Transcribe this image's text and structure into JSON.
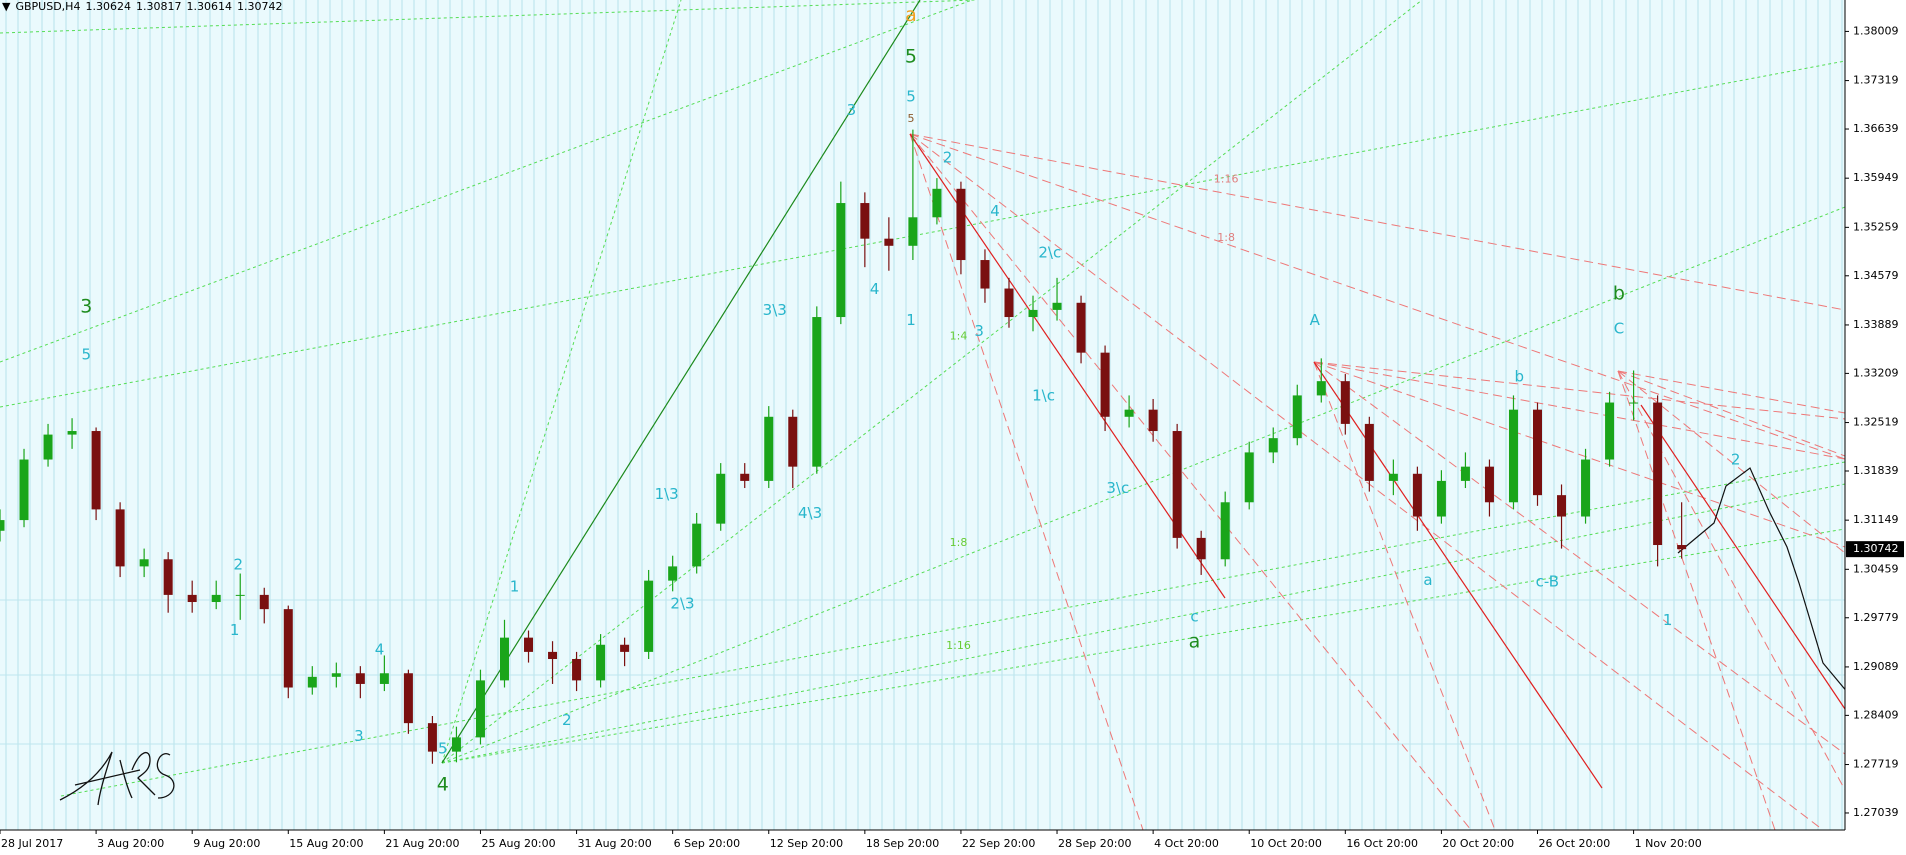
{
  "chart_data": {
    "type": "candlestick",
    "header": {
      "symbol": "GBPUSD,H4",
      "ohlc": [
        1.30624,
        1.30817,
        1.30614,
        1.30742
      ]
    },
    "ylim": [
      1.268,
      1.3845
    ],
    "yticks": [
      1.38009,
      1.37319,
      1.36639,
      1.35949,
      1.35259,
      1.34579,
      1.33889,
      1.33209,
      1.32519,
      1.31839,
      1.31149,
      1.30459,
      1.29779,
      1.29089,
      1.28409,
      1.27719,
      1.27039
    ],
    "xlim": [
      0,
      76.8
    ],
    "xticks": [
      {
        "value": 0,
        "label": "28 Jul 2017"
      },
      {
        "value": 4,
        "label": "3 Aug 20:00"
      },
      {
        "value": 8,
        "label": "9 Aug 20:00"
      },
      {
        "value": 12,
        "label": "15 Aug 20:00"
      },
      {
        "value": 16,
        "label": "21 Aug 20:00"
      },
      {
        "value": 20,
        "label": "25 Aug 20:00"
      },
      {
        "value": 24,
        "label": "31 Aug 20:00"
      },
      {
        "value": 28,
        "label": "6 Sep 20:00"
      },
      {
        "value": 32,
        "label": "12 Sep 20:00"
      },
      {
        "value": 36,
        "label": "18 Sep 20:00"
      },
      {
        "value": 40,
        "label": "22 Sep 20:00"
      },
      {
        "value": 44,
        "label": "28 Sep 20:00"
      },
      {
        "value": 48,
        "label": "4 Oct 20:00"
      },
      {
        "value": 52,
        "label": "10 Oct 20:00"
      },
      {
        "value": 56,
        "label": "16 Oct 20:00"
      },
      {
        "value": 60,
        "label": "20 Oct 20:00"
      },
      {
        "value": 64,
        "label": "26 Oct 20:00"
      },
      {
        "value": 68,
        "label": "1 Nov 20:00"
      }
    ],
    "bull_color": "#1aa51a",
    "bear_color": "#7a1010",
    "ohlc": [
      [
        1.31,
        1.313,
        1.3085,
        1.3115
      ],
      [
        1.3115,
        1.3215,
        1.3105,
        1.32
      ],
      [
        1.32,
        1.325,
        1.319,
        1.3235
      ],
      [
        1.3235,
        1.3258,
        1.3215,
        1.324
      ],
      [
        1.324,
        1.3245,
        1.3115,
        1.313
      ],
      [
        1.313,
        1.314,
        1.3035,
        1.305
      ],
      [
        1.305,
        1.3075,
        1.3035,
        1.306
      ],
      [
        1.306,
        1.307,
        1.2985,
        1.301
      ],
      [
        1.301,
        1.303,
        1.2985,
        1.3
      ],
      [
        1.3,
        1.303,
        1.299,
        1.301
      ],
      [
        1.301,
        1.304,
        1.2975,
        1.301
      ],
      [
        1.301,
        1.302,
        1.297,
        1.299
      ],
      [
        1.299,
        1.2995,
        1.2865,
        1.288
      ],
      [
        1.288,
        1.291,
        1.287,
        1.2895
      ],
      [
        1.2895,
        1.2915,
        1.288,
        1.29
      ],
      [
        1.29,
        1.291,
        1.2865,
        1.2885
      ],
      [
        1.2885,
        1.2925,
        1.2875,
        1.29
      ],
      [
        1.29,
        1.2905,
        1.2815,
        1.283
      ],
      [
        1.283,
        1.284,
        1.2773,
        1.279
      ],
      [
        1.279,
        1.2825,
        1.2775,
        1.281
      ],
      [
        1.281,
        1.2905,
        1.28,
        1.289
      ],
      [
        1.289,
        1.2975,
        1.288,
        1.295
      ],
      [
        1.295,
        1.296,
        1.2915,
        1.293
      ],
      [
        1.293,
        1.2945,
        1.2885,
        1.292
      ],
      [
        1.292,
        1.293,
        1.2875,
        1.289
      ],
      [
        1.289,
        1.2955,
        1.288,
        1.294
      ],
      [
        1.294,
        1.295,
        1.291,
        1.293
      ],
      [
        1.293,
        1.3045,
        1.292,
        1.303
      ],
      [
        1.303,
        1.3065,
        1.3015,
        1.305
      ],
      [
        1.305,
        1.3125,
        1.304,
        1.311
      ],
      [
        1.311,
        1.3195,
        1.31,
        1.318
      ],
      [
        1.318,
        1.3195,
        1.316,
        1.317
      ],
      [
        1.317,
        1.3275,
        1.316,
        1.326
      ],
      [
        1.326,
        1.327,
        1.316,
        1.319
      ],
      [
        1.319,
        1.3415,
        1.318,
        1.34
      ],
      [
        1.34,
        1.359,
        1.339,
        1.356
      ],
      [
        1.356,
        1.3575,
        1.347,
        1.351
      ],
      [
        1.351,
        1.354,
        1.3465,
        1.35
      ],
      [
        1.35,
        1.3663,
        1.348,
        1.354
      ],
      [
        1.354,
        1.3595,
        1.353,
        1.358
      ],
      [
        1.358,
        1.359,
        1.346,
        1.348
      ],
      [
        1.348,
        1.3495,
        1.342,
        1.344
      ],
      [
        1.344,
        1.3455,
        1.3385,
        1.34
      ],
      [
        1.34,
        1.343,
        1.338,
        1.341
      ],
      [
        1.341,
        1.3455,
        1.3395,
        1.342
      ],
      [
        1.342,
        1.343,
        1.3335,
        1.335
      ],
      [
        1.335,
        1.336,
        1.324,
        1.326
      ],
      [
        1.326,
        1.329,
        1.3245,
        1.327
      ],
      [
        1.327,
        1.3285,
        1.3225,
        1.324
      ],
      [
        1.324,
        1.325,
        1.3075,
        1.309
      ],
      [
        1.309,
        1.31,
        1.3038,
        1.306
      ],
      [
        1.306,
        1.3155,
        1.305,
        1.314
      ],
      [
        1.314,
        1.3225,
        1.313,
        1.321
      ],
      [
        1.321,
        1.3245,
        1.3195,
        1.323
      ],
      [
        1.323,
        1.3305,
        1.322,
        1.329
      ],
      [
        1.329,
        1.3342,
        1.328,
        1.331
      ],
      [
        1.331,
        1.332,
        1.3235,
        1.325
      ],
      [
        1.325,
        1.326,
        1.3155,
        1.317
      ],
      [
        1.317,
        1.32,
        1.315,
        1.318
      ],
      [
        1.318,
        1.319,
        1.31,
        1.312
      ],
      [
        1.312,
        1.3185,
        1.311,
        1.317
      ],
      [
        1.317,
        1.321,
        1.316,
        1.319
      ],
      [
        1.319,
        1.32,
        1.312,
        1.314
      ],
      [
        1.314,
        1.329,
        1.313,
        1.327
      ],
      [
        1.327,
        1.328,
        1.3135,
        1.315
      ],
      [
        1.315,
        1.3165,
        1.3075,
        1.312
      ],
      [
        1.312,
        1.3215,
        1.311,
        1.32
      ],
      [
        1.32,
        1.3295,
        1.319,
        1.328
      ],
      [
        1.328,
        1.3325,
        1.3255,
        1.328
      ],
      [
        1.328,
        1.329,
        1.305,
        1.308
      ],
      [
        1.308,
        1.314,
        1.3061,
        1.30742
      ]
    ],
    "annotations": [
      {
        "text": "3",
        "x": 3.59,
        "y": 1.3414,
        "color": "#1e8c1e"
      },
      {
        "text": "5",
        "x": 3.59,
        "y": 1.3347,
        "color": "#29b6cc"
      },
      {
        "text": "4",
        "x": 18.43,
        "y": 1.2743,
        "color": "#1e8c1e"
      },
      {
        "text": "5",
        "x": 18.43,
        "y": 1.2794,
        "color": "#29b6cc"
      },
      {
        "text": "a",
        "x": 37.92,
        "y": 1.3823,
        "color": "#f0a020"
      },
      {
        "text": "5",
        "x": 37.92,
        "y": 1.3765,
        "color": "#1e8c1e"
      },
      {
        "text": "5",
        "x": 37.92,
        "y": 1.3709,
        "color": "#29b6cc"
      },
      {
        "text": "5",
        "x": 37.92,
        "y": 1.3678,
        "color": "#8b5a2b"
      },
      {
        "text": "1",
        "x": 37.92,
        "y": 1.3395,
        "color": "#29b6cc"
      },
      {
        "text": "a",
        "x": 49.72,
        "y": 1.2944,
        "color": "#1e8c1e"
      },
      {
        "text": "c",
        "x": 49.72,
        "y": 1.2979,
        "color": "#29b6cc"
      },
      {
        "text": "A",
        "x": 54.73,
        "y": 1.3395,
        "color": "#29b6cc"
      },
      {
        "text": "a",
        "x": 59.44,
        "y": 1.303,
        "color": "#29b6cc"
      },
      {
        "text": "c-B",
        "x": 64.41,
        "y": 1.3028,
        "color": "#29b6cc"
      },
      {
        "text": "b",
        "x": 67.39,
        "y": 1.3432,
        "color": "#1e8c1e"
      },
      {
        "text": "C",
        "x": 67.39,
        "y": 1.3383,
        "color": "#29b6cc"
      },
      {
        "text": "1",
        "x": 69.42,
        "y": 1.2974,
        "color": "#29b6cc"
      },
      {
        "text": "2",
        "x": 72.25,
        "y": 1.3199,
        "color": "#29b6cc"
      },
      {
        "text": "1",
        "x": 9.77,
        "y": 1.296,
        "color": "#29b6cc"
      },
      {
        "text": "2",
        "x": 9.92,
        "y": 1.3052,
        "color": "#29b6cc"
      },
      {
        "text": "3",
        "x": 14.94,
        "y": 1.2811,
        "color": "#29b6cc"
      },
      {
        "text": "4",
        "x": 15.8,
        "y": 1.2933,
        "color": "#29b6cc"
      },
      {
        "text": "1",
        "x": 21.42,
        "y": 1.3021,
        "color": "#29b6cc"
      },
      {
        "text": "2",
        "x": 23.59,
        "y": 1.2834,
        "color": "#29b6cc"
      },
      {
        "text": "2\\3",
        "x": 28.41,
        "y": 1.2997,
        "color": "#29b6cc"
      },
      {
        "text": "1\\3",
        "x": 27.75,
        "y": 1.3151,
        "color": "#29b6cc"
      },
      {
        "text": "3\\3",
        "x": 32.25,
        "y": 1.3409,
        "color": "#29b6cc"
      },
      {
        "text": "4\\3",
        "x": 33.72,
        "y": 1.3124,
        "color": "#29b6cc"
      },
      {
        "text": "3",
        "x": 35.44,
        "y": 1.369,
        "color": "#29b6cc"
      },
      {
        "text": "4",
        "x": 36.41,
        "y": 1.3439,
        "color": "#29b6cc"
      },
      {
        "text": "2",
        "x": 39.44,
        "y": 1.3623,
        "color": "#29b6cc"
      },
      {
        "text": "3",
        "x": 40.76,
        "y": 1.338,
        "color": "#29b6cc"
      },
      {
        "text": "4",
        "x": 41.42,
        "y": 1.3548,
        "color": "#29b6cc"
      },
      {
        "text": "2\\c",
        "x": 43.7,
        "y": 1.349,
        "color": "#29b6cc"
      },
      {
        "text": "1\\c",
        "x": 43.44,
        "y": 1.3289,
        "color": "#29b6cc"
      },
      {
        "text": "3\\c",
        "x": 46.53,
        "y": 1.3159,
        "color": "#29b6cc"
      },
      {
        "text": "b",
        "x": 63.24,
        "y": 1.3316,
        "color": "#29b6cc"
      },
      {
        "text": "1:16",
        "x": 51.04,
        "y": 1.3593,
        "color": "#e08080"
      },
      {
        "text": "1:8",
        "x": 51.04,
        "y": 1.3511,
        "color": "#e08080"
      },
      {
        "text": "1:4",
        "x": 39.9,
        "y": 1.3373,
        "color": "#66cc33"
      },
      {
        "text": "1:8",
        "x": 39.9,
        "y": 1.3083,
        "color": "#66cc33"
      },
      {
        "text": "1:16",
        "x": 39.9,
        "y": 1.2938,
        "color": "#66cc33"
      }
    ]
  }
}
